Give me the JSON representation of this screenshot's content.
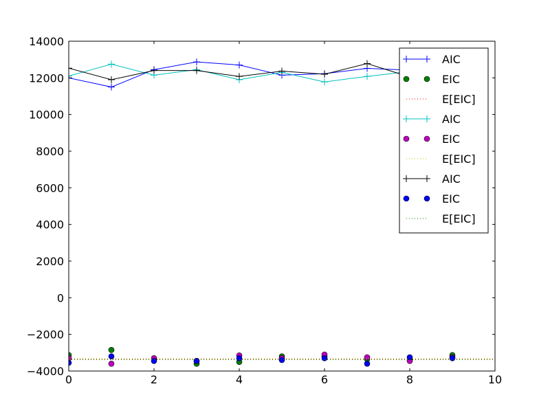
{
  "chart_data": {
    "type": "line",
    "title": "",
    "xlabel": "",
    "ylabel": "",
    "xlim": [
      0,
      10
    ],
    "ylim": [
      -4000,
      14000
    ],
    "xticks": [
      0,
      2,
      4,
      6,
      8,
      10
    ],
    "yticks": [
      -4000,
      -2000,
      0,
      2000,
      4000,
      6000,
      8000,
      10000,
      12000,
      14000
    ],
    "grid": false,
    "legend_position": "top-right",
    "x": [
      0,
      1,
      2,
      3,
      4,
      5,
      6,
      7,
      8,
      9
    ],
    "series": [
      {
        "name": "AIC",
        "style": "line-plus",
        "color": "#0000ff",
        "values": [
          12000,
          11500,
          12450,
          12870,
          12700,
          12150,
          12230,
          12520,
          12420,
          12080
        ]
      },
      {
        "name": "EIC",
        "style": "markers",
        "color": "#008000",
        "values": [
          -3130,
          -2850,
          -3350,
          -3600,
          -3500,
          -3200,
          -3200,
          -3350,
          -3400,
          -3130
        ]
      },
      {
        "name": "E[EIC]",
        "style": "dotted",
        "color": "#ff0000",
        "values": [
          -3350,
          -3350,
          -3350,
          -3350,
          -3350,
          -3350,
          -3350,
          -3350,
          -3350,
          -3350
        ]
      },
      {
        "name": "AIC",
        "style": "line-plus",
        "color": "#00bfbf",
        "values": [
          12100,
          12750,
          12150,
          12450,
          11900,
          12300,
          11780,
          12080,
          12350,
          12500
        ]
      },
      {
        "name": "EIC",
        "style": "markers",
        "color": "#bf00bf",
        "values": [
          -3300,
          -3600,
          -3300,
          -3450,
          -3150,
          -3300,
          -3100,
          -3250,
          -3450,
          -3250
        ]
      },
      {
        "name": "E[EIC]",
        "style": "dotted",
        "color": "#bfbf00",
        "values": [
          -3320,
          -3320,
          -3320,
          -3320,
          -3320,
          -3320,
          -3320,
          -3320,
          -3320,
          -3320
        ]
      },
      {
        "name": "AIC",
        "style": "line-plus",
        "color": "#000000",
        "values": [
          12530,
          11900,
          12400,
          12400,
          12080,
          12370,
          12200,
          12780,
          12050,
          12200
        ]
      },
      {
        "name": "EIC",
        "style": "markers",
        "color": "#0000ff",
        "values": [
          -3550,
          -3200,
          -3450,
          -3450,
          -3300,
          -3400,
          -3300,
          -3600,
          -3250,
          -3300
        ]
      },
      {
        "name": "E[EIC]",
        "style": "dotted",
        "color": "#008000",
        "values": [
          -3380,
          -3380,
          -3380,
          -3380,
          -3380,
          -3380,
          -3380,
          -3380,
          -3380,
          -3380
        ]
      }
    ]
  }
}
